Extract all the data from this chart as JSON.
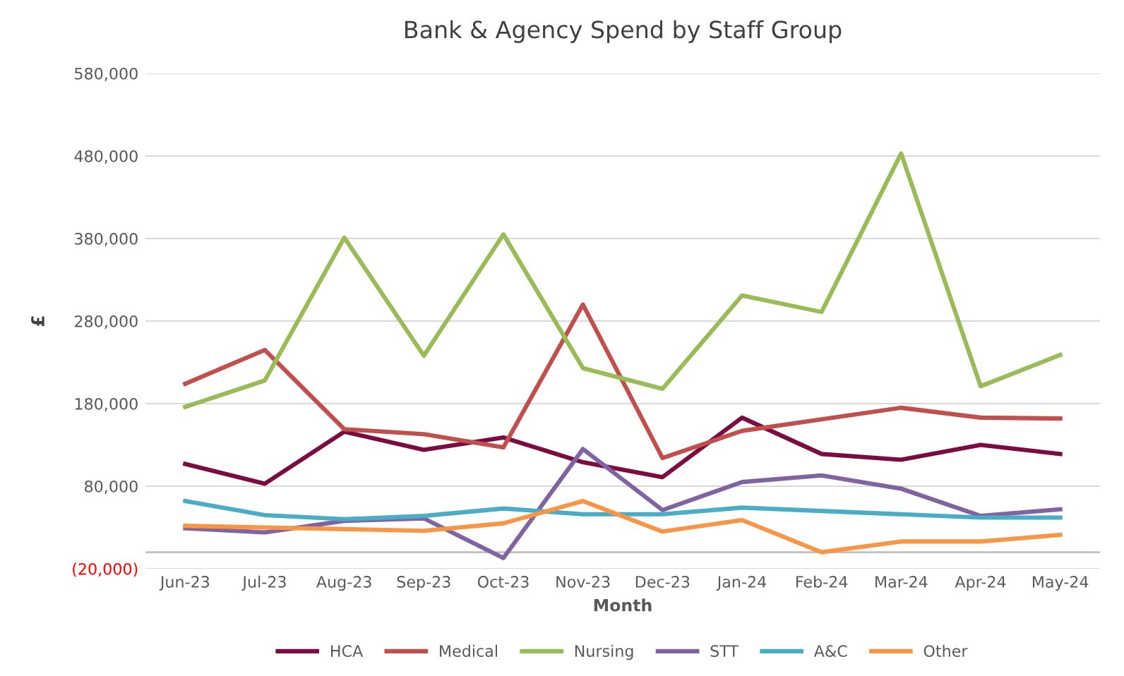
{
  "chart_data": {
    "type": "line",
    "title": "Bank & Agency Spend by Staff Group",
    "xlabel": "Month",
    "ylabel": "£",
    "categories": [
      "Jun-23",
      "Jul-23",
      "Aug-23",
      "Sep-23",
      "Oct-23",
      "Nov-23",
      "Dec-23",
      "Jan-24",
      "Feb-24",
      "Mar-24",
      "Apr-24",
      "May-24"
    ],
    "series": [
      {
        "name": "HCA",
        "color": "#7b0c41",
        "values": [
          107000,
          83000,
          146000,
          124000,
          139000,
          109000,
          91000,
          163000,
          119000,
          112000,
          130000,
          119000
        ]
      },
      {
        "name": "Medical",
        "color": "#c0504d",
        "values": [
          204000,
          245000,
          149000,
          143000,
          127000,
          300000,
          114000,
          147000,
          161000,
          175000,
          163000,
          162000
        ]
      },
      {
        "name": "Nursing",
        "color": "#9bbb59",
        "values": [
          176000,
          208000,
          381000,
          238000,
          385000,
          223000,
          198000,
          311000,
          291000,
          483000,
          201000,
          239000
        ]
      },
      {
        "name": "STT",
        "color": "#8064a2",
        "values": [
          29000,
          24000,
          38000,
          41000,
          -7000,
          125000,
          51000,
          85000,
          93000,
          77000,
          44000,
          52000
        ]
      },
      {
        "name": "A&C",
        "color": "#4bacc6",
        "values": [
          62000,
          45000,
          40000,
          44000,
          53000,
          46000,
          46000,
          54000,
          50000,
          46000,
          42000,
          42000
        ]
      },
      {
        "name": "Other",
        "color": "#f79646",
        "values": [
          32000,
          30000,
          28000,
          26000,
          35000,
          62000,
          25000,
          39000,
          0,
          13000,
          13000,
          21000
        ]
      }
    ],
    "ylim": [
      -20000,
      580000
    ],
    "yticks": [
      {
        "value": -20000,
        "label": "(20,000)"
      },
      {
        "value": 80000,
        "label": "80,000"
      },
      {
        "value": 180000,
        "label": "180,000"
      },
      {
        "value": 280000,
        "label": "280,000"
      },
      {
        "value": 380000,
        "label": "380,000"
      },
      {
        "value": 480000,
        "label": "480,000"
      },
      {
        "value": 580000,
        "label": "580,000"
      }
    ],
    "ref_lines": [
      {
        "axis": "y",
        "value": 0,
        "color": "#bfbfbf"
      }
    ],
    "grid": "y",
    "legend": "bottom",
    "marker": "none",
    "line_style": "solid"
  }
}
